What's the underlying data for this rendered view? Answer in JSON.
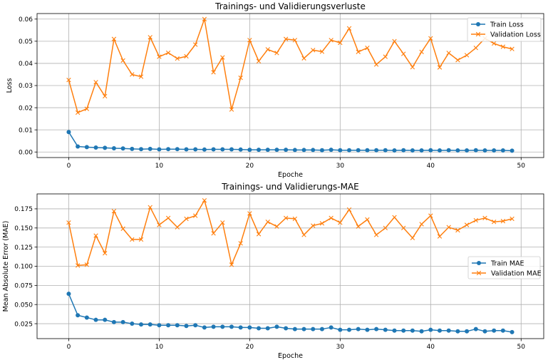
{
  "chart_data": [
    {
      "type": "line",
      "title": "Trainings- und Validierungsverluste",
      "xlabel": "Epoche",
      "ylabel": "Loss",
      "xlim": [
        -3.5,
        52.5
      ],
      "ylim": [
        -0.0025,
        0.0625
      ],
      "xticks": [
        0,
        10,
        20,
        30,
        40,
        50
      ],
      "xtick_labels": [
        "0",
        "10",
        "20",
        "30",
        "40",
        "50"
      ],
      "yticks": [
        0,
        0.01,
        0.02,
        0.03,
        0.04,
        0.05,
        0.06
      ],
      "ytick_labels": [
        "0.00",
        "0.01",
        "0.02",
        "0.03",
        "0.04",
        "0.05",
        "0.06"
      ],
      "grid": true,
      "legend_position": "top-right",
      "x": [
        0,
        1,
        2,
        3,
        4,
        5,
        6,
        7,
        8,
        9,
        10,
        11,
        12,
        13,
        14,
        15,
        16,
        17,
        18,
        19,
        20,
        21,
        22,
        23,
        24,
        25,
        26,
        27,
        28,
        29,
        30,
        31,
        32,
        33,
        34,
        35,
        36,
        37,
        38,
        39,
        40,
        41,
        42,
        43,
        44,
        45,
        46,
        47,
        48,
        49
      ],
      "series": [
        {
          "name": "Train Loss",
          "color": "#1f77b4",
          "marker": "circle",
          "values": [
            0.009,
            0.0025,
            0.0022,
            0.002,
            0.0019,
            0.0017,
            0.0016,
            0.0014,
            0.0013,
            0.0014,
            0.0012,
            0.0013,
            0.0013,
            0.0012,
            0.0012,
            0.0011,
            0.0012,
            0.0012,
            0.0012,
            0.0011,
            0.001,
            0.001,
            0.001,
            0.001,
            0.001,
            0.0009,
            0.0009,
            0.0009,
            0.0008,
            0.001,
            0.0008,
            0.0008,
            0.0008,
            0.0008,
            0.0008,
            0.0008,
            0.0007,
            0.0008,
            0.0007,
            0.0007,
            0.0008,
            0.0007,
            0.0008,
            0.0007,
            0.0007,
            0.0008,
            0.0007,
            0.0007,
            0.0007,
            0.0006
          ]
        },
        {
          "name": "Validation Loss",
          "color": "#ff7f0e",
          "marker": "x",
          "values": [
            0.0325,
            0.0178,
            0.0195,
            0.0315,
            0.0252,
            0.051,
            0.0413,
            0.035,
            0.034,
            0.0518,
            0.043,
            0.0448,
            0.0422,
            0.0432,
            0.0485,
            0.06,
            0.036,
            0.0427,
            0.0192,
            0.0335,
            0.0505,
            0.041,
            0.0463,
            0.0447,
            0.051,
            0.0505,
            0.0423,
            0.046,
            0.0453,
            0.0505,
            0.0493,
            0.0558,
            0.0452,
            0.047,
            0.0395,
            0.043,
            0.05,
            0.0443,
            0.0383,
            0.0452,
            0.0513,
            0.0382,
            0.0447,
            0.0415,
            0.0437,
            0.047,
            0.0513,
            0.049,
            0.0475,
            0.0465
          ]
        }
      ]
    },
    {
      "type": "line",
      "title": "Trainings- und Validierungs-MAE",
      "xlabel": "Epoche",
      "ylabel": "Mean Absolute Error (MAE)",
      "xlim": [
        -3.5,
        52.5
      ],
      "ylim": [
        0.0055,
        0.1945
      ],
      "xticks": [
        0,
        10,
        20,
        30,
        40,
        50
      ],
      "xtick_labels": [
        "0",
        "10",
        "20",
        "30",
        "40",
        "50"
      ],
      "yticks": [
        0.025,
        0.05,
        0.075,
        0.1,
        0.125,
        0.15,
        0.175
      ],
      "ytick_labels": [
        "0.025",
        "0.050",
        "0.075",
        "0.100",
        "0.125",
        "0.150",
        "0.175"
      ],
      "grid": true,
      "legend_position": "center-right",
      "x": [
        0,
        1,
        2,
        3,
        4,
        5,
        6,
        7,
        8,
        9,
        10,
        11,
        12,
        13,
        14,
        15,
        16,
        17,
        18,
        19,
        20,
        21,
        22,
        23,
        24,
        25,
        26,
        27,
        28,
        29,
        30,
        31,
        32,
        33,
        34,
        35,
        36,
        37,
        38,
        39,
        40,
        41,
        42,
        43,
        44,
        45,
        46,
        47,
        48,
        49
      ],
      "series": [
        {
          "name": "Train MAE",
          "color": "#1f77b4",
          "marker": "circle",
          "values": [
            0.064,
            0.036,
            0.033,
            0.03,
            0.03,
            0.027,
            0.027,
            0.025,
            0.024,
            0.024,
            0.023,
            0.023,
            0.023,
            0.022,
            0.023,
            0.02,
            0.021,
            0.021,
            0.021,
            0.02,
            0.02,
            0.019,
            0.019,
            0.021,
            0.019,
            0.018,
            0.018,
            0.018,
            0.018,
            0.02,
            0.017,
            0.017,
            0.018,
            0.017,
            0.018,
            0.017,
            0.016,
            0.016,
            0.016,
            0.015,
            0.017,
            0.016,
            0.016,
            0.015,
            0.015,
            0.018,
            0.015,
            0.016,
            0.016,
            0.014
          ]
        },
        {
          "name": "Validation MAE",
          "color": "#ff7f0e",
          "marker": "x",
          "values": [
            0.157,
            0.101,
            0.102,
            0.14,
            0.117,
            0.172,
            0.149,
            0.135,
            0.135,
            0.177,
            0.154,
            0.163,
            0.151,
            0.162,
            0.166,
            0.186,
            0.143,
            0.157,
            0.102,
            0.13,
            0.169,
            0.142,
            0.158,
            0.152,
            0.163,
            0.162,
            0.141,
            0.153,
            0.156,
            0.163,
            0.157,
            0.174,
            0.152,
            0.161,
            0.141,
            0.15,
            0.164,
            0.15,
            0.137,
            0.155,
            0.166,
            0.139,
            0.151,
            0.147,
            0.154,
            0.16,
            0.163,
            0.158,
            0.159,
            0.162
          ]
        }
      ]
    }
  ]
}
